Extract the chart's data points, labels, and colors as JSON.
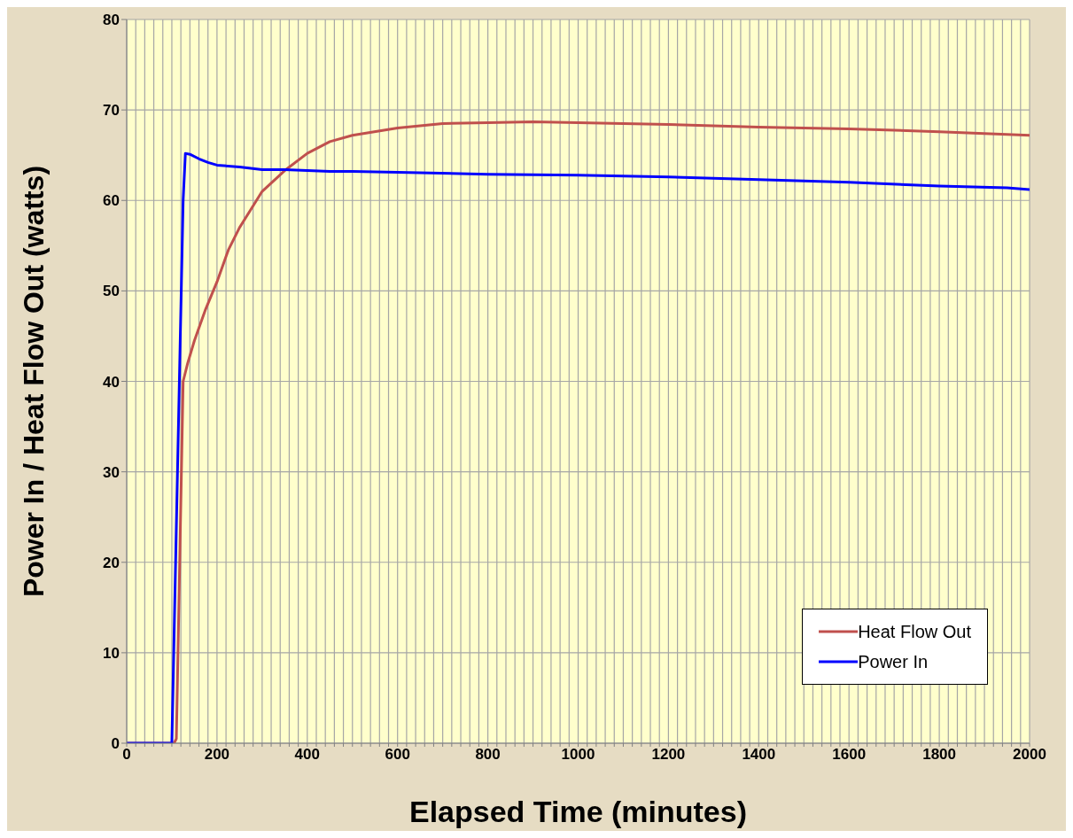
{
  "chart_data": {
    "type": "line",
    "xlabel": "Elapsed Time (minutes)",
    "ylabel": "Power In / Heat Flow Out (watts)",
    "series": [
      {
        "name": "Heat Flow Out",
        "color": "#c0504d",
        "x": [
          0,
          105,
          110,
          125,
          135,
          150,
          175,
          200,
          225,
          250,
          275,
          300,
          350,
          400,
          450,
          500,
          600,
          700,
          800,
          900,
          1000,
          1200,
          1400,
          1600,
          1800,
          2000
        ],
        "values": [
          0,
          0,
          0.5,
          40,
          42,
          44.5,
          48,
          51,
          54.5,
          57,
          59,
          61,
          63.3,
          65.2,
          66.5,
          67.2,
          68,
          68.5,
          68.6,
          68.7,
          68.6,
          68.4,
          68.1,
          67.9,
          67.6,
          67.2
        ]
      },
      {
        "name": "Power In",
        "color": "#0000ff",
        "x": [
          0,
          100,
          125,
          130,
          140,
          160,
          180,
          200,
          250,
          300,
          350,
          400,
          450,
          500,
          600,
          800,
          1000,
          1200,
          1400,
          1600,
          1800,
          1950,
          2000
        ],
        "values": [
          0,
          0,
          60,
          65.2,
          65.1,
          64.6,
          64.2,
          63.9,
          63.7,
          63.4,
          63.4,
          63.3,
          63.2,
          63.2,
          63.1,
          62.9,
          62.8,
          62.6,
          62.3,
          62,
          61.6,
          61.4,
          61.2
        ]
      }
    ],
    "xlim": [
      0,
      2000
    ],
    "xticks": [
      0,
      {
        "value": 20,
        "label": null
      },
      {
        "value": 40,
        "label": null
      },
      {
        "value": 60,
        "label": null
      },
      {
        "value": 80,
        "label": null
      },
      {
        "value": 100,
        "label": null
      },
      {
        "value": 120,
        "label": null
      },
      {
        "value": 140,
        "label": null
      },
      {
        "value": 160,
        "label": null
      },
      {
        "value": 180,
        "label": null
      },
      200,
      {
        "value": 220,
        "label": null
      },
      {
        "value": 240,
        "label": null
      },
      {
        "value": 260,
        "label": null
      },
      {
        "value": 280,
        "label": null
      },
      {
        "value": 300,
        "label": null
      },
      {
        "value": 320,
        "label": null
      },
      {
        "value": 340,
        "label": null
      },
      {
        "value": 360,
        "label": null
      },
      {
        "value": 380,
        "label": null
      },
      400,
      {
        "value": 420,
        "label": null
      },
      {
        "value": 440,
        "label": null
      },
      {
        "value": 460,
        "label": null
      },
      {
        "value": 480,
        "label": null
      },
      {
        "value": 500,
        "label": null
      },
      {
        "value": 520,
        "label": null
      },
      {
        "value": 540,
        "label": null
      },
      {
        "value": 560,
        "label": null
      },
      {
        "value": 580,
        "label": null
      },
      600,
      {
        "value": 620,
        "label": null
      },
      {
        "value": 640,
        "label": null
      },
      {
        "value": 660,
        "label": null
      },
      {
        "value": 680,
        "label": null
      },
      {
        "value": 700,
        "label": null
      },
      {
        "value": 720,
        "label": null
      },
      {
        "value": 740,
        "label": null
      },
      {
        "value": 760,
        "label": null
      },
      {
        "value": 780,
        "label": null
      },
      800,
      {
        "value": 820,
        "label": null
      },
      {
        "value": 840,
        "label": null
      },
      {
        "value": 860,
        "label": null
      },
      {
        "value": 880,
        "label": null
      },
      {
        "value": 900,
        "label": null
      },
      {
        "value": 920,
        "label": null
      },
      {
        "value": 940,
        "label": null
      },
      {
        "value": 960,
        "label": null
      },
      {
        "value": 980,
        "label": null
      },
      1000,
      {
        "value": 1020,
        "label": null
      },
      {
        "value": 1040,
        "label": null
      },
      {
        "value": 1060,
        "label": null
      },
      {
        "value": 1080,
        "label": null
      },
      {
        "value": 1100,
        "label": null
      },
      {
        "value": 1120,
        "label": null
      },
      {
        "value": 1140,
        "label": null
      },
      {
        "value": 1160,
        "label": null
      },
      {
        "value": 1180,
        "label": null
      },
      1200,
      {
        "value": 1220,
        "label": null
      },
      {
        "value": 1240,
        "label": null
      },
      {
        "value": 1260,
        "label": null
      },
      {
        "value": 1280,
        "label": null
      },
      {
        "value": 1300,
        "label": null
      },
      {
        "value": 1320,
        "label": null
      },
      {
        "value": 1340,
        "label": null
      },
      {
        "value": 1360,
        "label": null
      },
      {
        "value": 1380,
        "label": null
      },
      1400,
      {
        "value": 1420,
        "label": null
      },
      {
        "value": 1440,
        "label": null
      },
      {
        "value": 1460,
        "label": null
      },
      {
        "value": 1480,
        "label": null
      },
      {
        "value": 1500,
        "label": null
      },
      {
        "value": 1520,
        "label": null
      },
      {
        "value": 1540,
        "label": null
      },
      {
        "value": 1560,
        "label": null
      },
      {
        "value": 1580,
        "label": null
      },
      1600,
      {
        "value": 1620,
        "label": null
      },
      {
        "value": 1640,
        "label": null
      },
      {
        "value": 1660,
        "label": null
      },
      {
        "value": 1680,
        "label": null
      },
      {
        "value": 1700,
        "label": null
      },
      {
        "value": 1720,
        "label": null
      },
      {
        "value": 1740,
        "label": null
      },
      {
        "value": 1760,
        "label": null
      },
      {
        "value": 1780,
        "label": null
      },
      1800,
      {
        "value": 1820,
        "label": null
      },
      {
        "value": 1840,
        "label": null
      },
      {
        "value": 1860,
        "label": null
      },
      {
        "value": 1880,
        "label": null
      },
      {
        "value": 1900,
        "label": null
      },
      {
        "value": 1920,
        "label": null
      },
      {
        "value": 1940,
        "label": null
      },
      {
        "value": 1960,
        "label": null
      },
      {
        "value": 1980,
        "label": null
      },
      2000
    ],
    "ylim": [
      0,
      80
    ],
    "yticks": [
      0,
      10,
      20,
      30,
      40,
      50,
      60,
      70,
      80
    ],
    "grid": true,
    "legend": "bottom right",
    "marker": "none",
    "line_style": "solid"
  }
}
